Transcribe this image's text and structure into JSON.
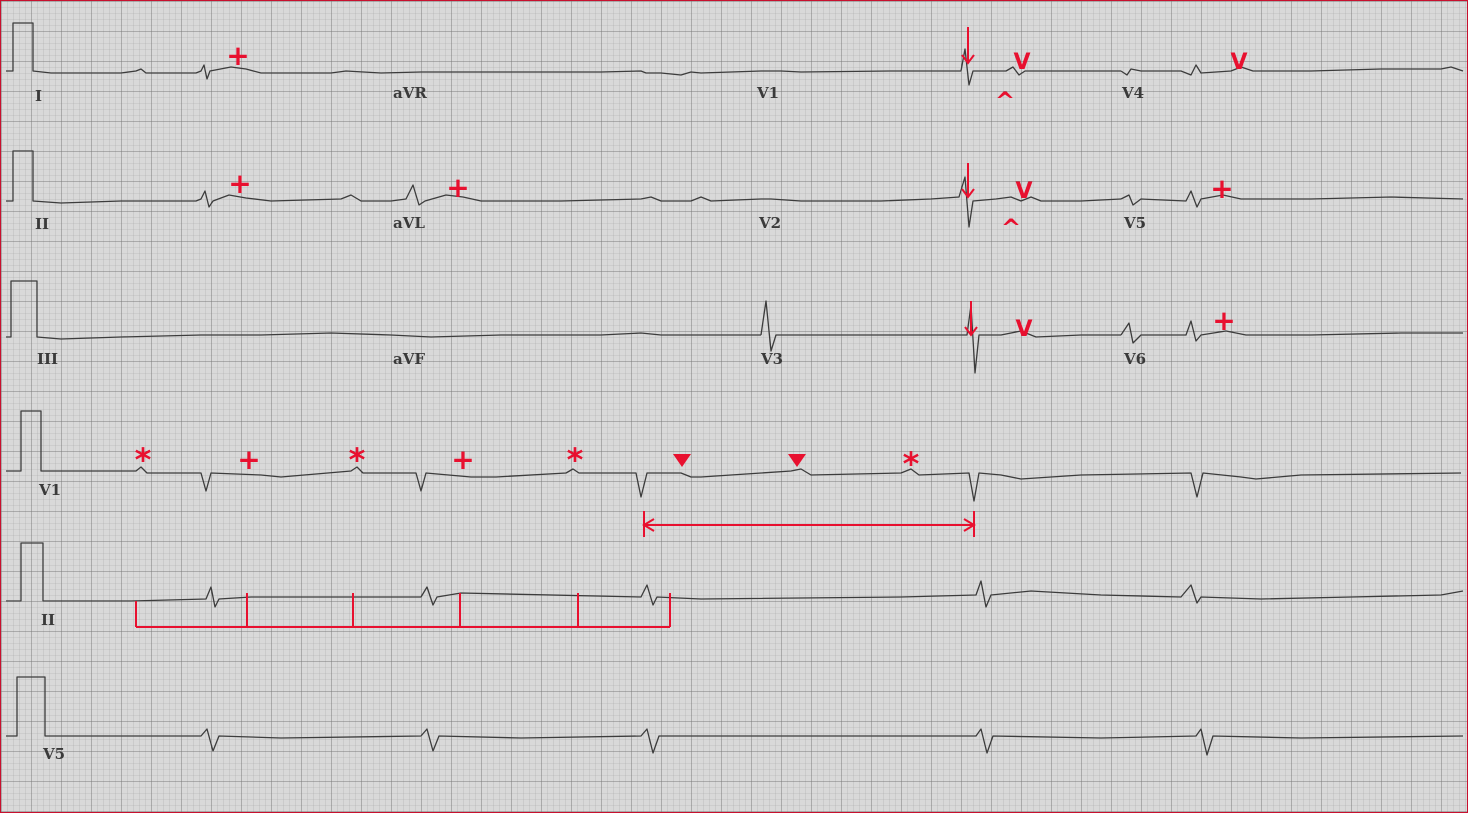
{
  "figure": {
    "background_color": "#d9d9d9",
    "minor_grid_color": "#a9a9a9",
    "major_grid_color": "#7a7a7a",
    "trace_color": "#3c3c3c",
    "annotation_color": "#e8102f",
    "frame_color": "#c8102e"
  },
  "lead_labels": {
    "I": "I",
    "aVR": "aVR",
    "V1": "V1",
    "V4": "V4",
    "II": "II",
    "aVL": "aVL",
    "V2": "V2",
    "V5": "V5",
    "III": "III",
    "aVF": "aVF",
    "V3": "V3",
    "V6": "V6",
    "rhythm_V1": "V1",
    "rhythm_II": "II",
    "rhythm_V5": "V5"
  },
  "annotations": {
    "plus_symbol": "+",
    "star_symbol": "*",
    "v_symbol": "V",
    "caret_symbol": "^"
  }
}
